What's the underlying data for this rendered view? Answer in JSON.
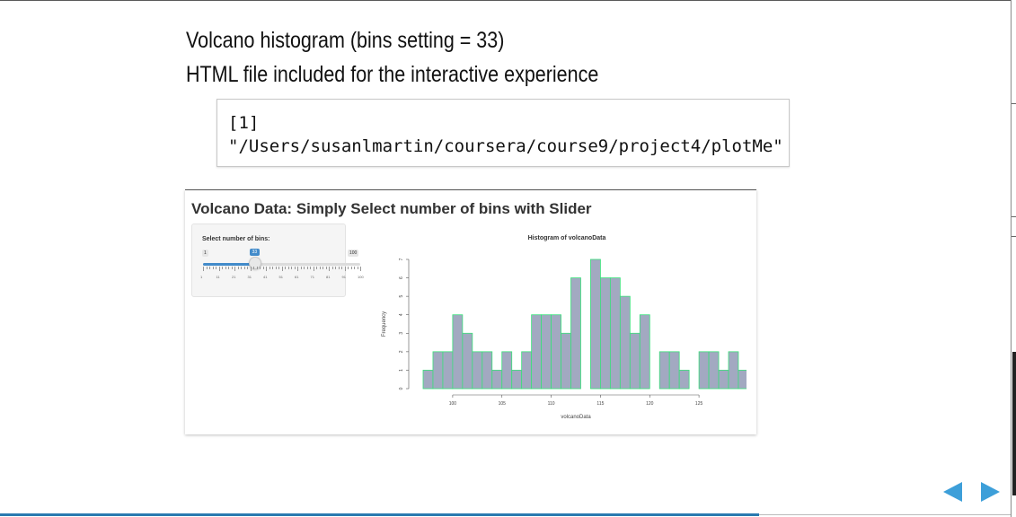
{
  "slide": {
    "line1": "Volcano histogram (bins setting = 33)",
    "line2": "HTML file included for the interactive experience",
    "code_output": "[1]\n\"/Users/susanlmartin/coursera/course9/project4/plotMe\""
  },
  "app": {
    "title": "Volcano Data: Simply Select number of bins with Slider",
    "slider": {
      "label": "Select number of bins:",
      "min": 1,
      "max": 100,
      "value": 33,
      "min_label": "1",
      "max_label": "100",
      "value_label": "33",
      "ticks": [
        "1",
        "11",
        "21",
        "31",
        "41",
        "51",
        "61",
        "71",
        "81",
        "91",
        "100"
      ],
      "accent_color": "#428bca"
    }
  },
  "nav": {
    "prev_icon": "triangle-left-icon",
    "next_icon": "triangle-right-icon",
    "arrow_color": "#3d9fd9"
  },
  "chart_data": {
    "type": "bar",
    "title": "Histogram of volcanoData",
    "xlabel": "volcanoData",
    "ylabel": "Frequency",
    "bar_fill": "#a2a9c1",
    "bar_stroke": "#39e07a",
    "xlim": [
      97,
      128
    ],
    "ylim": [
      0,
      7
    ],
    "x_ticks": [
      100,
      105,
      110,
      115,
      120,
      125
    ],
    "y_ticks": [
      0,
      1,
      2,
      3,
      4,
      5,
      6,
      7
    ],
    "bin_start": 97,
    "bin_width": 1,
    "values": [
      1,
      2,
      2,
      4,
      3,
      2,
      2,
      1,
      2,
      1,
      2,
      4,
      4,
      4,
      3,
      6,
      0,
      7,
      6,
      6,
      5,
      3,
      4,
      0,
      2,
      2,
      1,
      0,
      2,
      2,
      1,
      2,
      1
    ]
  }
}
